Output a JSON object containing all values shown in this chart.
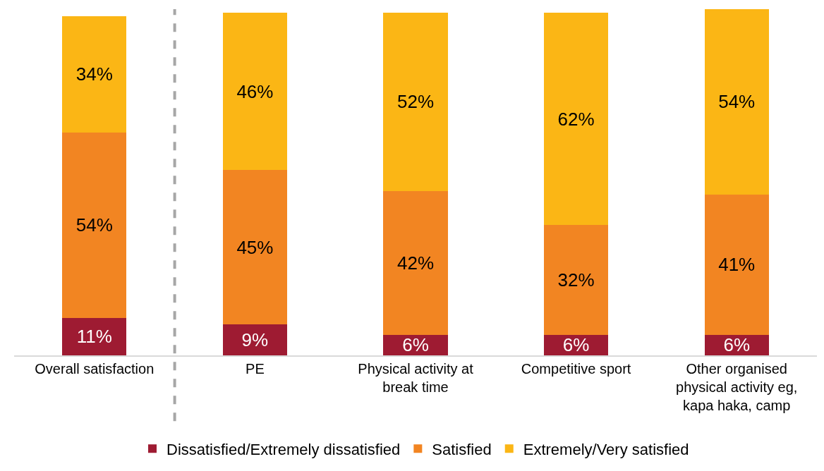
{
  "chart_data": {
    "type": "bar",
    "stacked": true,
    "categories": [
      "Overall satisfaction",
      "PE",
      "Physical activity at break time",
      "Competitive sport",
      "Other organised physical activity eg, kapa haka, camp"
    ],
    "series": [
      {
        "name": "Dissatisfied/Extremely dissatisfied",
        "color": "#9e1b32",
        "values": [
          11,
          9,
          6,
          6,
          6
        ],
        "value_labels": [
          "11%",
          "9%",
          "6%",
          "6%",
          "6%"
        ]
      },
      {
        "name": "Satisfied",
        "color": "#f28522",
        "values": [
          54,
          45,
          42,
          32,
          41
        ],
        "value_labels": [
          "54%",
          "45%",
          "42%",
          "32%",
          "41%"
        ]
      },
      {
        "name": "Extremely/Very satisfied",
        "color": "#fbb615",
        "values": [
          34,
          46,
          52,
          62,
          54
        ],
        "value_labels": [
          "34%",
          "46%",
          "52%",
          "62%",
          "54%"
        ]
      }
    ],
    "legend": "bottom",
    "tick_labels": "x"
  }
}
